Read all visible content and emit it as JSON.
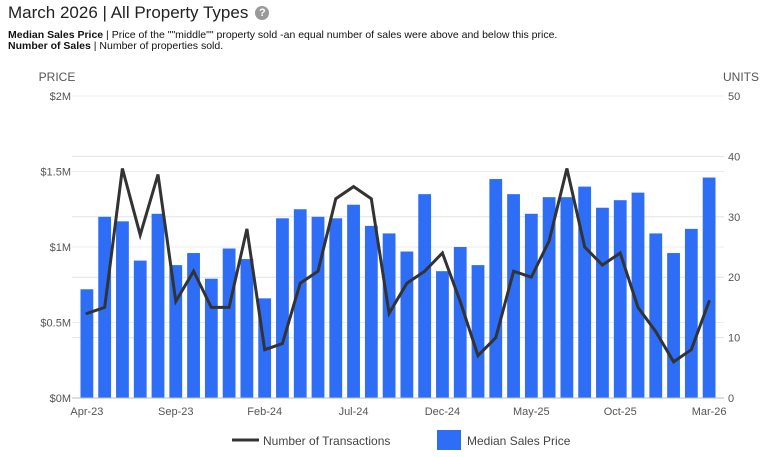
{
  "header": {
    "title": "March 2026 | All Property Types",
    "help_icon": "question-circle-icon",
    "desc1_bold": "Median Sales Price",
    "desc1_text": " | Price of the \"\"middle\"\" property sold -an equal number of sales were above and below this price.",
    "desc2_bold": "Number of Sales",
    "desc2_text": " | Number of properties sold."
  },
  "chart_data": {
    "type": "bar",
    "title": "",
    "x_tick_labels": [
      "Apr-23",
      "Sep-23",
      "Feb-24",
      "Jul-24",
      "Dec-24",
      "May-25",
      "Oct-25",
      "Mar-26"
    ],
    "x_tick_every": 5,
    "left_axis": {
      "title": "PRICE",
      "ylim": [
        0,
        2000000
      ],
      "ticks": [
        0,
        500000,
        1000000,
        1500000,
        2000000
      ],
      "tick_labels": [
        "$0M",
        "$0.5M",
        "$1M",
        "$1.5M",
        "$2M"
      ]
    },
    "right_axis": {
      "title": "UNITS",
      "ylim": [
        0,
        50
      ],
      "ticks": [
        0,
        10,
        20,
        30,
        40,
        50
      ],
      "tick_labels": [
        "0",
        "10",
        "20",
        "30",
        "40",
        "50"
      ]
    },
    "grid": true,
    "legend_position": "bottom",
    "series": [
      {
        "name": "Median Sales Price",
        "kind": "bar",
        "axis": "left",
        "color": "#2e6ef7",
        "values": [
          720000,
          1200000,
          1170000,
          910000,
          1220000,
          880000,
          960000,
          790000,
          990000,
          920000,
          660000,
          1190000,
          1250000,
          1200000,
          1190000,
          1280000,
          1140000,
          1090000,
          970000,
          1350000,
          840000,
          1000000,
          880000,
          1450000,
          1350000,
          1220000,
          1330000,
          1330000,
          1400000,
          1260000,
          1310000,
          1360000,
          1090000,
          960000,
          1120000,
          1460000
        ]
      },
      {
        "name": "Number of Transactions",
        "kind": "line",
        "axis": "right",
        "color": "#333333",
        "values": [
          14,
          15,
          38,
          27,
          37,
          16,
          21,
          15,
          15,
          28,
          8,
          9,
          19,
          21,
          33,
          35,
          33,
          14,
          19,
          21,
          24,
          16,
          7,
          10,
          21,
          20,
          26,
          38,
          25,
          22,
          24,
          15,
          11,
          6,
          8,
          16
        ]
      }
    ]
  },
  "legend": {
    "line_label": "Number of Transactions",
    "bar_label": "Median Sales Price"
  }
}
